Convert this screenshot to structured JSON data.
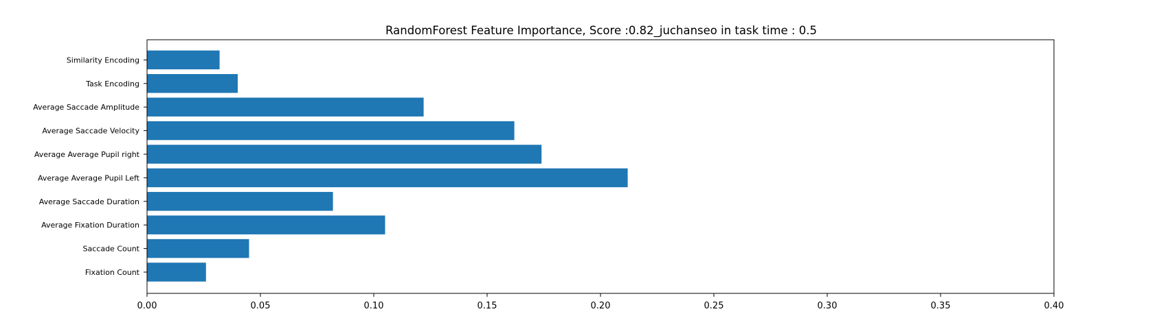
{
  "chart_data": {
    "type": "bar",
    "orientation": "horizontal",
    "title": "RandomForest Feature Importance, Score :0.82_juchanseo in task time : 0.5",
    "xlabel": "",
    "ylabel": "",
    "categories": [
      "Fixation Count",
      "Saccade Count",
      "Average Fixation Duration",
      "Average Saccade Duration",
      "Average Average Pupil Left",
      "Average Average Pupil right",
      "Average Saccade Velocity",
      "Average Saccade Amplitude",
      "Task Encoding",
      "Similarity Encoding"
    ],
    "values": [
      0.026,
      0.045,
      0.105,
      0.082,
      0.212,
      0.174,
      0.162,
      0.122,
      0.04,
      0.032
    ],
    "xlim": [
      0.0,
      0.4
    ],
    "xticks": [
      "0.00",
      "0.05",
      "0.10",
      "0.15",
      "0.20",
      "0.25",
      "0.30",
      "0.35",
      "0.40"
    ],
    "grid": false,
    "legend": "none",
    "bar_color": "#1f77b4"
  }
}
